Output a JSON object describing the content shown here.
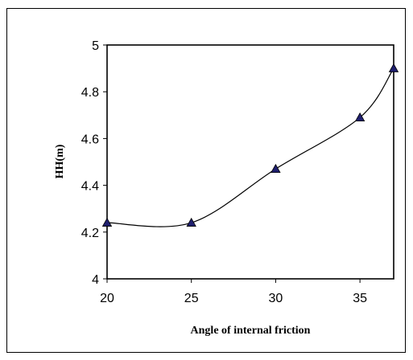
{
  "chart_data": {
    "type": "line",
    "title": "",
    "xlabel": "Angle of internal friction",
    "ylabel": "HH(m)",
    "xlim": [
      20,
      37
    ],
    "ylim": [
      4,
      5
    ],
    "x_ticks": [
      "20",
      "25",
      "30",
      "35"
    ],
    "y_ticks": [
      "4",
      "4.2",
      "4.4",
      "4.6",
      "4.8",
      "5"
    ],
    "grid": false,
    "legend": "none",
    "series": [
      {
        "x": [
          20,
          25,
          30,
          35,
          37
        ],
        "values": [
          4.24,
          4.24,
          4.47,
          4.69,
          4.9
        ],
        "marker": "triangle",
        "marker_color": "#1f1f6e",
        "line_color": "#000000"
      }
    ]
  }
}
